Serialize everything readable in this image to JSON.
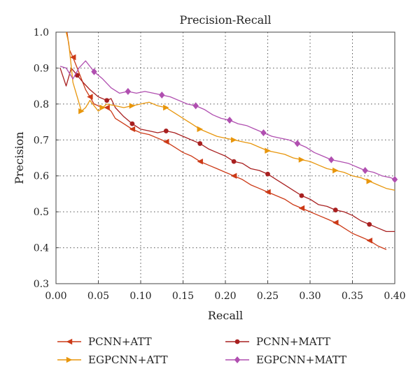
{
  "chart_data": {
    "type": "line",
    "title": "Precision-Recall",
    "xlabel": "Recall",
    "ylabel": "Precision",
    "xlim": [
      0.0,
      0.4
    ],
    "ylim": [
      0.3,
      1.0
    ],
    "xticks": [
      "0.00",
      "0.05",
      "0.10",
      "0.15",
      "0.20",
      "0.25",
      "0.30",
      "0.35",
      "0.40"
    ],
    "yticks": [
      "0.3",
      "0.4",
      "0.5",
      "0.6",
      "0.7",
      "0.8",
      "0.9",
      "1.0"
    ],
    "grid": true,
    "legend_position": "bottom",
    "series": [
      {
        "name": "PCNN+ATT",
        "color": "#cc3a17",
        "marker": "triangle-left",
        "x": [
          0.013,
          0.016,
          0.02,
          0.025,
          0.03,
          0.035,
          0.04,
          0.045,
          0.05,
          0.055,
          0.06,
          0.065,
          0.07,
          0.08,
          0.09,
          0.1,
          0.11,
          0.12,
          0.13,
          0.14,
          0.15,
          0.16,
          0.17,
          0.18,
          0.19,
          0.2,
          0.21,
          0.22,
          0.23,
          0.24,
          0.25,
          0.26,
          0.27,
          0.28,
          0.29,
          0.3,
          0.31,
          0.32,
          0.33,
          0.34,
          0.35,
          0.36,
          0.37,
          0.38,
          0.39
        ],
        "y": [
          1.0,
          0.95,
          0.93,
          0.9,
          0.87,
          0.84,
          0.82,
          0.8,
          0.795,
          0.79,
          0.79,
          0.78,
          0.76,
          0.745,
          0.73,
          0.72,
          0.715,
          0.705,
          0.695,
          0.68,
          0.665,
          0.655,
          0.64,
          0.63,
          0.62,
          0.61,
          0.6,
          0.59,
          0.575,
          0.565,
          0.555,
          0.545,
          0.535,
          0.52,
          0.51,
          0.5,
          0.49,
          0.48,
          0.47,
          0.455,
          0.44,
          0.43,
          0.42,
          0.405,
          0.395
        ]
      },
      {
        "name": "PCNN+MATT",
        "color": "#a82020",
        "marker": "circle",
        "x": [
          0.005,
          0.012,
          0.018,
          0.025,
          0.032,
          0.04,
          0.05,
          0.06,
          0.065,
          0.07,
          0.08,
          0.09,
          0.1,
          0.11,
          0.12,
          0.13,
          0.14,
          0.15,
          0.16,
          0.17,
          0.18,
          0.19,
          0.2,
          0.21,
          0.22,
          0.23,
          0.24,
          0.25,
          0.26,
          0.27,
          0.28,
          0.29,
          0.3,
          0.31,
          0.32,
          0.33,
          0.34,
          0.35,
          0.36,
          0.37,
          0.38,
          0.39,
          0.4
        ],
        "y": [
          0.9,
          0.85,
          0.9,
          0.88,
          0.86,
          0.84,
          0.82,
          0.81,
          0.815,
          0.79,
          0.765,
          0.745,
          0.73,
          0.725,
          0.72,
          0.725,
          0.72,
          0.71,
          0.7,
          0.69,
          0.675,
          0.665,
          0.655,
          0.64,
          0.635,
          0.62,
          0.615,
          0.605,
          0.59,
          0.575,
          0.56,
          0.545,
          0.535,
          0.52,
          0.515,
          0.505,
          0.5,
          0.49,
          0.475,
          0.465,
          0.455,
          0.445,
          0.445
        ]
      },
      {
        "name": "EGPCNN+ATT",
        "color": "#e8960c",
        "marker": "triangle-right",
        "x": [
          0.012,
          0.015,
          0.02,
          0.025,
          0.03,
          0.035,
          0.04,
          0.05,
          0.055,
          0.06,
          0.07,
          0.08,
          0.09,
          0.1,
          0.11,
          0.12,
          0.13,
          0.14,
          0.15,
          0.16,
          0.17,
          0.18,
          0.19,
          0.2,
          0.21,
          0.22,
          0.23,
          0.24,
          0.25,
          0.26,
          0.27,
          0.28,
          0.29,
          0.3,
          0.31,
          0.32,
          0.33,
          0.34,
          0.35,
          0.36,
          0.37,
          0.38,
          0.39,
          0.4
        ],
        "y": [
          1.0,
          0.97,
          0.86,
          0.82,
          0.78,
          0.79,
          0.81,
          0.78,
          0.79,
          0.8,
          0.795,
          0.79,
          0.795,
          0.8,
          0.805,
          0.795,
          0.79,
          0.775,
          0.76,
          0.745,
          0.73,
          0.72,
          0.71,
          0.705,
          0.7,
          0.695,
          0.69,
          0.68,
          0.67,
          0.665,
          0.66,
          0.65,
          0.645,
          0.64,
          0.63,
          0.62,
          0.615,
          0.61,
          0.6,
          0.595,
          0.585,
          0.575,
          0.565,
          0.56
        ]
      },
      {
        "name": "EGPCNN+MATT",
        "color": "#b04fb0",
        "marker": "diamond",
        "x": [
          0.005,
          0.012,
          0.02,
          0.027,
          0.035,
          0.045,
          0.055,
          0.065,
          0.075,
          0.085,
          0.095,
          0.105,
          0.115,
          0.125,
          0.135,
          0.145,
          0.155,
          0.165,
          0.175,
          0.185,
          0.195,
          0.205,
          0.215,
          0.225,
          0.235,
          0.245,
          0.255,
          0.265,
          0.275,
          0.285,
          0.295,
          0.305,
          0.315,
          0.325,
          0.335,
          0.345,
          0.355,
          0.365,
          0.375,
          0.385,
          0.395,
          0.4
        ],
        "y": [
          0.905,
          0.9,
          0.87,
          0.9,
          0.92,
          0.89,
          0.87,
          0.845,
          0.83,
          0.835,
          0.83,
          0.835,
          0.83,
          0.825,
          0.82,
          0.81,
          0.8,
          0.795,
          0.785,
          0.77,
          0.76,
          0.755,
          0.745,
          0.74,
          0.73,
          0.72,
          0.71,
          0.705,
          0.7,
          0.69,
          0.68,
          0.665,
          0.655,
          0.645,
          0.64,
          0.635,
          0.625,
          0.615,
          0.61,
          0.6,
          0.595,
          0.59
        ]
      }
    ]
  }
}
